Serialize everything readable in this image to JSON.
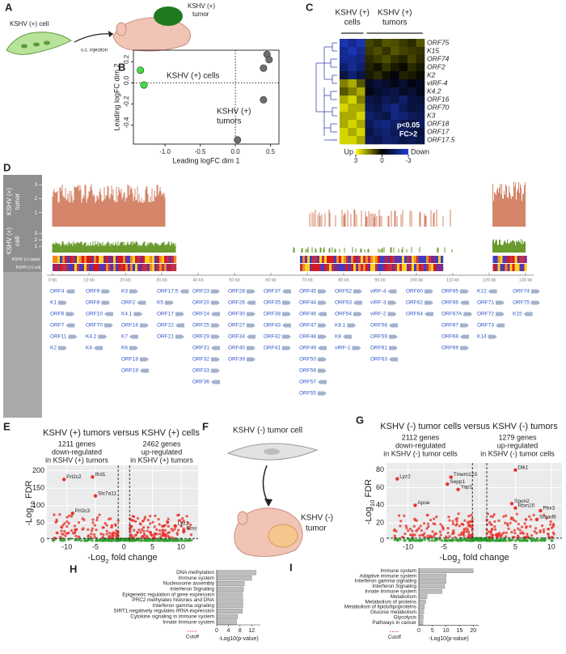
{
  "figure": {
    "A": {
      "letter": "A",
      "cell_label": "KSHV (+) cell",
      "injection": "s.c. injection",
      "tumor_label": [
        "KSHV (+)",
        "tumor"
      ]
    },
    "D": {
      "letter": "D",
      "track_labels": [
        [
          "KSHV (+)",
          "tumor"
        ],
        [
          "KSHV (+)",
          "cell"
        ]
      ],
      "strip_labels": [
        "KSHV (+) tumor",
        "KSHV (+) cell"
      ],
      "track_ylim": [
        0,
        3.6
      ],
      "track_yticks": [
        1,
        2,
        3
      ],
      "kb_lim": [
        0,
        130
      ],
      "kb_ticks": [
        {
          "value": 0,
          "label": "0 kb"
        },
        {
          "value": 10,
          "label": "10 kb"
        },
        {
          "value": 20,
          "label": "20 kb"
        },
        {
          "value": 30,
          "label": "30 kb"
        },
        {
          "value": 40,
          "label": "40 kb"
        },
        {
          "value": 50,
          "label": "50 kb"
        },
        {
          "value": 60,
          "label": "60 kb"
        },
        {
          "value": 70,
          "label": "70 kb"
        },
        {
          "value": 80,
          "label": "80 kb"
        },
        {
          "value": 90,
          "label": "90 kb"
        },
        {
          "value": 100,
          "label": "100 kb"
        },
        {
          "value": 110,
          "label": "110 kb"
        },
        {
          "value": 120,
          "label": "120 kb"
        },
        {
          "value": 130,
          "label": "130 kb"
        }
      ],
      "gene_columns": [
        [
          "ORF4",
          "K1",
          "ORF6",
          "ORF7",
          "ORF11",
          "K2"
        ],
        [
          "ORF9",
          "ORF8",
          "ORF10",
          "ORF70",
          "K4.2",
          "K4"
        ],
        [
          "K3",
          "ORF2",
          "K4.1",
          "ORF16",
          "K7",
          "K6",
          "ORF18",
          "ORF19"
        ],
        [
          "ORF17.5",
          "K5",
          "ORF17",
          "ORF22",
          "ORF21"
        ],
        [
          "ORF23",
          "ORF20",
          "ORF24",
          "ORF25",
          "ORF29",
          "ORF31",
          "ORF32",
          "ORF33",
          "ORF36"
        ],
        [
          "ORF28",
          "ORF26",
          "ORF30",
          "ORF27",
          "ORF34",
          "ORF40",
          "ORF39"
        ],
        [
          "ORF37",
          "ORF35",
          "ORF38",
          "ORF43",
          "ORF42",
          "ORF41"
        ],
        [
          "ORF45",
          "ORF44",
          "ORF46",
          "ORF47",
          "ORF48",
          "ORF49",
          "ORF50",
          "ORF56",
          "ORF57",
          "ORF55"
        ],
        [
          "ORF52",
          "ORF53",
          "ORF54",
          "K8.1",
          "K8",
          "vIRF-1"
        ],
        [
          "vIRF-4",
          "vIRF-3",
          "vIRF-2",
          "ORF58",
          "ORF59",
          "ORF61",
          "ORF63"
        ],
        [
          "ORF60",
          "ORF62",
          "ORF64"
        ],
        [
          "ORF65",
          "ORF66",
          "ORF67A",
          "ORF67",
          "ORF68",
          "ORF69"
        ],
        [
          "K12",
          "ORF71",
          "ORF72",
          "ORF73",
          "K14"
        ],
        [
          "ORF74",
          "ORF75",
          "K15"
        ]
      ]
    },
    "F": {
      "letter": "F",
      "cell_label": "KSHV (-)  tumor cell",
      "tumor_label": [
        "KSHV (-)",
        "tumor"
      ]
    }
  },
  "chart_data": [
    {
      "panel": "B",
      "type": "scatter",
      "xlabel": "Leading logFC dim 1",
      "ylabel": "Leading logFC dim 2",
      "xlim": [
        -1.45,
        0.62
      ],
      "ylim": [
        -0.58,
        0.31
      ],
      "xticks": [
        {
          "value": -1,
          "label": "-1.0"
        },
        -0.5,
        {
          "value": 0,
          "label": "0.0"
        },
        0.5
      ],
      "yticks": [
        0.2,
        {
          "value": 0,
          "label": "0.0"
        },
        -0.2,
        -0.4
      ],
      "zero_lines": true,
      "series": [
        {
          "color": "#3ee03e",
          "x": [
            -1.35,
            -1.3
          ],
          "y": [
            0.12,
            -0.02
          ]
        },
        {
          "color": "#6e6e6e",
          "x": [
            0.45,
            0.48,
            0.4,
            0.4,
            0.03
          ],
          "y": [
            0.27,
            0.22,
            0.14,
            -0.16,
            -0.54
          ]
        }
      ],
      "annotations": [
        [
          "KSHV (+) cells"
        ],
        [
          "KSHV (+)",
          "tumors"
        ]
      ]
    },
    {
      "panel": "C",
      "type": "heatmap",
      "col_groups": [
        [
          "KSHV (+)",
          "cells"
        ],
        [
          "KSHV (+)",
          "tumors"
        ]
      ],
      "group_sizes": [
        3,
        7
      ],
      "rows": [
        "ORF75",
        "K15",
        "ORF74",
        "ORF2",
        "K2",
        "vIRF-4",
        "K4.2",
        "ORF16",
        "ORF70",
        "K3",
        "ORF18",
        "ORF17",
        "ORF17.5"
      ],
      "values": [
        [
          -2.5,
          -2,
          -2.5,
          0.8,
          0.6,
          1,
          0.9,
          0.7,
          0.5,
          1
        ],
        [
          -2,
          -2.5,
          -2,
          0.7,
          0.9,
          0.6,
          1,
          0.8,
          0.7,
          0.6
        ],
        [
          -2,
          -2,
          -1.8,
          0.5,
          0.7,
          0.9,
          0.6,
          0.4,
          0.8,
          0.5
        ],
        [
          -1.5,
          -2,
          -1.5,
          0.4,
          0.2,
          0.6,
          0.3,
          0.1,
          0.5,
          0.3
        ],
        [
          -1,
          -1.5,
          -1,
          0.3,
          0.5,
          0.2,
          -0.2,
          0.4,
          0.3,
          0.1
        ],
        [
          1.5,
          2,
          1,
          -0.5,
          -0.8,
          -0.6,
          -0.3,
          -0.7,
          -0.2,
          -0.5
        ],
        [
          1,
          1.5,
          2,
          -0.3,
          -0.6,
          -0.8,
          -1,
          -0.5,
          -0.7,
          -0.4
        ],
        [
          2,
          2.5,
          1.5,
          -1,
          -0.8,
          -1.2,
          -1,
          -1.5,
          -0.9,
          -0.8
        ],
        [
          2.5,
          2,
          2,
          -1.2,
          -1,
          -1.5,
          -1.8,
          -1.2,
          -0.8,
          -1
        ],
        [
          2,
          2,
          2.5,
          -1.5,
          -1.2,
          -1,
          -1.8,
          -1.6,
          -1.3,
          -1.1
        ],
        [
          2,
          2.5,
          2,
          -1.2,
          -1.6,
          -1.8,
          -1.4,
          -1.2,
          -1,
          -1.3
        ],
        [
          2.5,
          2,
          2.5,
          -1,
          -1.4,
          -1.6,
          -1.2,
          -1.5,
          -1.1,
          -0.9
        ],
        [
          2.5,
          2.5,
          2,
          -1.3,
          -1.1,
          -1.5,
          -1.4,
          -1,
          -1.2,
          -1
        ]
      ],
      "annotation": [
        "p<0.05",
        "FC>2"
      ],
      "colorbar": {
        "lim": [
          3,
          -3
        ],
        "ticks": [
          3,
          0,
          -3
        ],
        "high": "#ffff00",
        "mid": "#000000",
        "low": "#1f3fd6",
        "up_label": "Up",
        "down_label": "Down"
      }
    },
    {
      "panel": "E",
      "type": "volcano",
      "title": "KSHV (+) tumors versus KSHV (+) cells",
      "down_label": [
        "1211 genes",
        "down-regulated",
        "in KSHV (+) tumors"
      ],
      "up_label": [
        "2462 genes",
        "up-regulated",
        "in KSHV (+) tumors"
      ],
      "xlabel": {
        "pre": "-Log",
        "sub": "2",
        "post": " fold change"
      },
      "ylabel": {
        "pre": "-Log",
        "sub": "10",
        "post": " FDR"
      },
      "xlim": [
        -13.5,
        13
      ],
      "ylim": [
        0,
        215
      ],
      "xticks": [
        -10,
        -5,
        0,
        5,
        10
      ],
      "yticks": [
        0,
        50,
        100,
        150,
        200
      ],
      "fc_threshold": 1,
      "fdr_threshold": 6,
      "point_color": "#e8322c",
      "points": [
        {
          "label": "Prl2c2",
          "x": -10.5,
          "y": 175
        },
        {
          "label": "Ifrd1",
          "x": -5.5,
          "y": 182
        },
        {
          "label": "Slc7a11",
          "x": -5,
          "y": 128
        },
        {
          "label": "Prl2c3",
          "x": -9,
          "y": 78
        },
        {
          "label": "Lyz2",
          "x": 9,
          "y": 42
        },
        {
          "label": "Ctss",
          "x": 10.5,
          "y": 28
        }
      ]
    },
    {
      "panel": "G",
      "type": "volcano",
      "title": "KSHV (-) tumor cells versus KSHV (-) tumors",
      "down_label": [
        "2112 genes",
        "down-regulated",
        "in KSHV (-) tumor cells"
      ],
      "up_label": [
        "1279 genes",
        "up-regulated",
        "in KSHV (-) tumor cells"
      ],
      "xlabel": {
        "pre": "-Log",
        "sub": "2",
        "post": " fold change"
      },
      "ylabel": {
        "pre": "-Log",
        "sub": "10",
        "post": " FDR"
      },
      "xlim": [
        -13,
        11.5
      ],
      "ylim": [
        0,
        88
      ],
      "xticks": [
        -10,
        -5,
        0,
        5,
        10
      ],
      "yticks": [
        0,
        20,
        40,
        60,
        80
      ],
      "fc_threshold": 1,
      "fdr_threshold": 3,
      "point_color": "#e8322c",
      "points": [
        {
          "label": "Lyz2",
          "x": -11.5,
          "y": 70
        },
        {
          "label": "Tmem123",
          "x": -4,
          "y": 72
        },
        {
          "label": "Sepp1",
          "x": -4.5,
          "y": 64
        },
        {
          "label": "Yap1",
          "x": -3,
          "y": 58
        },
        {
          "label": "Apoe",
          "x": -9,
          "y": 40
        },
        {
          "label": "Dlk1",
          "x": 5,
          "y": 80
        },
        {
          "label": "Spon2",
          "x": 4.5,
          "y": 42
        },
        {
          "label": "Rbm20",
          "x": 5,
          "y": 37
        },
        {
          "label": "Pbx3",
          "x": 8.5,
          "y": 34
        },
        {
          "label": "Smad9",
          "x": 8,
          "y": 24
        }
      ]
    },
    {
      "panel": "H",
      "type": "bar",
      "color": "#bdbdbd",
      "categories": [
        "DNA methylation",
        "Immune system",
        "Nucleosome assembly",
        "Interferon Signaling",
        "Epigenetic regulation of gene expression",
        "PRC2 methylates histones and DNA",
        "Interferon gamma signaling",
        "SIRT1 negatively regulates rRNA expression",
        "Cytokine signaling in immune system",
        "Innate Immune system"
      ],
      "values": [
        13.5,
        12,
        9.5,
        9.2,
        8.9,
        9,
        9,
        8.8,
        7.2,
        6.8
      ],
      "xlim": [
        0,
        15
      ],
      "xticks": [
        0,
        4,
        8,
        12
      ],
      "xlabel": "-Log10(p-value)",
      "cutoff_label": "Cutoff",
      "cutoff_color": "#e03030"
    },
    {
      "panel": "I",
      "type": "bar",
      "color": "#bdbdbd",
      "categories": [
        "Immune system",
        "Adaptive immune system",
        "Interferon gamma signaling",
        "Interferon Signaling",
        "Innate Immune system",
        "Metabolism",
        "Metabolism of proteins",
        "Metabolism of lipids/lipoproteins",
        "Glucose metabolism",
        "Glycolysis",
        "Pathways in cancer"
      ],
      "values": [
        20,
        10,
        10,
        9.5,
        8.5,
        3,
        2.5,
        2,
        1.8,
        1.6,
        1.5
      ],
      "xlim": [
        0,
        22
      ],
      "xticks": [
        0,
        5,
        10,
        15,
        20
      ],
      "xlabel": "-Log10(p-value)",
      "cutoff_label": "Cutoff",
      "cutoff_color": "#e03030"
    }
  ]
}
